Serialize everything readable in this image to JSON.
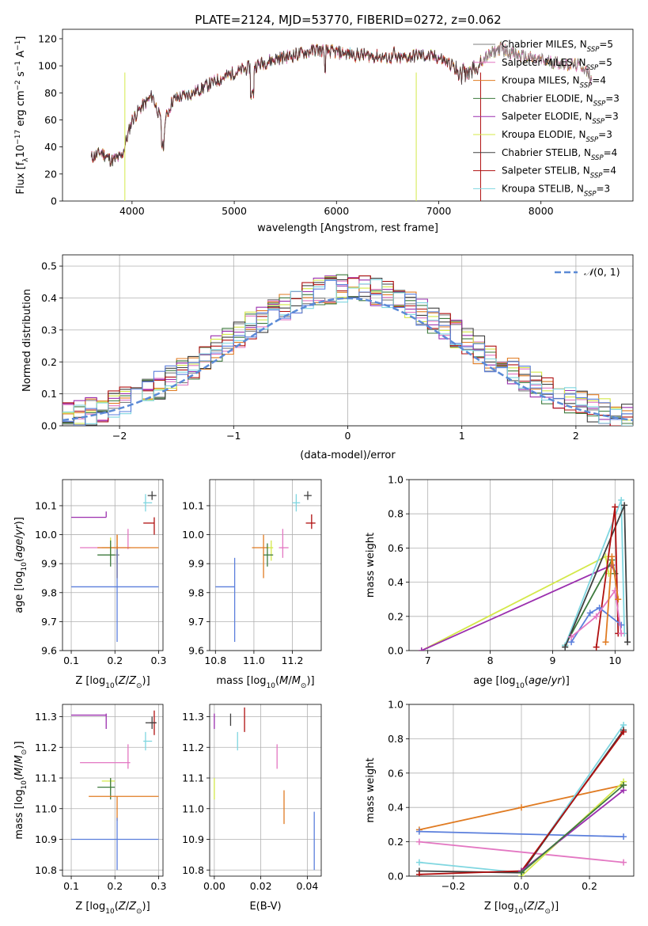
{
  "title": "PLATE=2124, MJD=53770, FIBERID=0272, z=0.062",
  "models": [
    {
      "key": "chabrier_miles",
      "label": "Chabrier MILES, N",
      "sub": "SSP",
      "suffix": "=5",
      "color": "#7f7f7f"
    },
    {
      "key": "salpeter_miles",
      "label": "Salpeter MILES, N",
      "sub": "SSP",
      "suffix": "=5",
      "color": "#e377c2"
    },
    {
      "key": "kroupa_miles",
      "label": "Kroupa MILES, N",
      "sub": "SSP",
      "suffix": "=4",
      "color": "#e07b22"
    },
    {
      "key": "chabrier_elodie",
      "label": "Chabrier ELODIE, N",
      "sub": "SSP",
      "suffix": "=3",
      "color": "#3d7a3d"
    },
    {
      "key": "salpeter_elodie",
      "label": "Salpeter ELODIE, N",
      "sub": "SSP",
      "suffix": "=3",
      "color": "#9b2fae"
    },
    {
      "key": "kroupa_elodie",
      "label": "Kroupa ELODIE, N",
      "sub": "SSP",
      "suffix": "=3",
      "color": "#d4e84a"
    },
    {
      "key": "chabrier_stelib",
      "label": "Chabrier STELIB, N",
      "sub": "SSP",
      "suffix": "=4",
      "color": "#404040"
    },
    {
      "key": "salpeter_stelib",
      "label": "Salpeter STELIB, N",
      "sub": "SSP",
      "suffix": "=4",
      "color": "#b01010"
    },
    {
      "key": "kroupa_stelib",
      "label": "Kroupa STELIB, N",
      "sub": "SSP",
      "suffix": "=3",
      "color": "#7fd6e0"
    }
  ],
  "chart_data": [
    {
      "id": "spectrum",
      "type": "line",
      "xlabel": "wavelength [Angstrom, rest frame]",
      "ylabel": "Flux [f_λ 10^-17 erg cm^-2 s^-1 A^-1]",
      "xlim": [
        3320,
        8900
      ],
      "ylim": [
        0,
        127
      ],
      "xticks": [
        4000,
        5000,
        6000,
        7000,
        8000
      ],
      "yticks": [
        0,
        20,
        40,
        60,
        80,
        100,
        120
      ],
      "legend": "top-right",
      "grid": false,
      "continuum_x": [
        3600,
        3700,
        3800,
        3900,
        4000,
        4100,
        4200,
        4300,
        4400,
        4600,
        4800,
        5000,
        5200,
        5400,
        5600,
        5800,
        6000,
        6200,
        6400,
        6600,
        6800,
        7000,
        7200,
        7400,
        7600,
        7800,
        8000,
        8200,
        8400,
        8500
      ],
      "continuum_y": [
        32,
        36,
        30,
        33,
        60,
        70,
        78,
        55,
        75,
        80,
        88,
        95,
        100,
        105,
        108,
        112,
        110,
        108,
        107,
        105,
        108,
        106,
        98,
        103,
        113,
        107,
        104,
        102,
        100,
        90
      ],
      "dropouts": [
        {
          "model": "kroupa_elodie",
          "x": 3930
        },
        {
          "model": "kroupa_elodie",
          "x": 6780
        },
        {
          "model": "salpeter_stelib",
          "x": 7410
        }
      ]
    },
    {
      "id": "residual_hist",
      "type": "step",
      "xlabel": "(data-model)/error",
      "ylabel": "Normed distribution",
      "xlim": [
        -2.5,
        2.5
      ],
      "ylim": [
        0,
        0.535
      ],
      "xticks": [
        -2,
        -1,
        0,
        1,
        2
      ],
      "yticks": [
        0,
        0.1,
        0.2,
        0.3,
        0.4,
        0.5
      ],
      "grid": true,
      "legend": "top-right",
      "reference": {
        "name": "N(0,1)",
        "mu": 0,
        "sigma": 1
      },
      "bins": {
        "start": -2.5,
        "width": 0.1,
        "count": 50
      }
    },
    {
      "id": "age_vs_Z",
      "type": "errorbar",
      "xlabel": "Z [log10(Z/Z☉)]",
      "ylabel": "age [log10(age/yr)]",
      "xlim": [
        0.08,
        0.31
      ],
      "ylim": [
        9.6,
        10.19
      ],
      "xticks": [
        0.1,
        0.2,
        0.3
      ],
      "yticks": [
        9.6,
        9.7,
        9.8,
        9.9,
        10.0,
        10.1
      ],
      "grid": true,
      "points": [
        {
          "model": "chabrier_stelib",
          "x": 0.285,
          "y": 10.135,
          "xlo": 0.275,
          "xhi": 0.295,
          "ylo": 10.12,
          "yhi": 10.15
        },
        {
          "model": "kroupa_stelib",
          "x": 0.27,
          "y": 10.11,
          "xlo": 0.265,
          "xhi": 0.285,
          "ylo": 10.08,
          "yhi": 10.14
        },
        {
          "model": "salpeter_elodie",
          "x": 0.18,
          "y": 10.06,
          "xlo": 0.1,
          "xhi": 0.18,
          "ylo": 10.06,
          "yhi": 10.08
        },
        {
          "model": "salpeter_stelib",
          "x": 0.29,
          "y": 10.04,
          "xlo": 0.265,
          "xhi": 0.29,
          "ylo": 10.0,
          "yhi": 10.06
        },
        {
          "model": "salpeter_miles",
          "x": 0.23,
          "y": 9.955,
          "xlo": 0.12,
          "xhi": 0.235,
          "ylo": 9.95,
          "yhi": 10.02
        },
        {
          "model": "kroupa_elodie",
          "x": 0.19,
          "y": 9.955,
          "xlo": 0.17,
          "xhi": 0.2,
          "ylo": 9.92,
          "yhi": 9.99
        },
        {
          "model": "kroupa_miles",
          "x": 0.205,
          "y": 9.955,
          "xlo": 0.16,
          "xhi": 0.3,
          "ylo": 9.85,
          "yhi": 10.0
        },
        {
          "model": "chabrier_elodie",
          "x": 0.19,
          "y": 9.93,
          "xlo": 0.16,
          "xhi": 0.2,
          "ylo": 9.89,
          "yhi": 9.98
        },
        {
          "model": "chabrier_miles",
          "x": 0.205,
          "y": 9.93,
          "xlo": 0.2,
          "xhi": 0.21,
          "ylo": 9.9,
          "yhi": 9.96
        },
        {
          "model": "kroupa_miles",
          "x": 0.205,
          "y": 9.955,
          "xlo": 0.2,
          "xhi": 0.2,
          "ylo": 9.85,
          "yhi": 10.0
        },
        {
          "model": "kroupa_miles_blue",
          "x": 0.205,
          "y": 9.82,
          "xlo": 0.1,
          "xhi": 0.3,
          "ylo": 9.63,
          "yhi": 9.95
        }
      ]
    },
    {
      "id": "age_vs_mass",
      "type": "errorbar",
      "xlabel": "mass [log10(M/M☉)]",
      "ylabel": "",
      "xlim": [
        10.77,
        11.35
      ],
      "ylim": [
        9.6,
        10.19
      ],
      "xticks": [
        10.8,
        11.0,
        11.2
      ],
      "yticks": [
        9.6,
        9.7,
        9.8,
        9.9,
        10.0,
        10.1
      ],
      "grid": true,
      "points": [
        {
          "model": "chabrier_stelib",
          "x": 11.28,
          "y": 10.135,
          "xlo": 11.26,
          "xhi": 11.3,
          "ylo": 10.12,
          "yhi": 10.15
        },
        {
          "model": "kroupa_stelib",
          "x": 11.22,
          "y": 10.11,
          "xlo": 11.2,
          "xhi": 11.24,
          "ylo": 10.08,
          "yhi": 10.14
        },
        {
          "model": "salpeter_stelib",
          "x": 11.3,
          "y": 10.04,
          "xlo": 11.27,
          "xhi": 11.32,
          "ylo": 10.02,
          "yhi": 10.07
        },
        {
          "model": "salpeter_miles",
          "x": 11.15,
          "y": 9.955,
          "xlo": 11.13,
          "xhi": 11.18,
          "ylo": 9.92,
          "yhi": 10.02
        },
        {
          "model": "kroupa_miles",
          "x": 11.05,
          "y": 9.955,
          "xlo": 10.99,
          "xhi": 11.08,
          "ylo": 9.85,
          "yhi": 10.0
        },
        {
          "model": "kroupa_elodie",
          "x": 11.09,
          "y": 9.955,
          "xlo": 11.07,
          "xhi": 11.1,
          "ylo": 9.91,
          "yhi": 9.98
        },
        {
          "model": "chabrier_elodie",
          "x": 11.07,
          "y": 9.93,
          "xlo": 11.05,
          "xhi": 11.1,
          "ylo": 9.89,
          "yhi": 9.97
        },
        {
          "model": "kroupa_miles_blue",
          "x": 10.9,
          "y": 9.82,
          "xlo": 10.8,
          "xhi": 10.9,
          "ylo": 9.63,
          "yhi": 9.92
        }
      ]
    },
    {
      "id": "weight_vs_age",
      "type": "line",
      "xlabel": "age [log10(age/yr)]",
      "ylabel": "mass weight",
      "xlim": [
        6.7,
        10.3
      ],
      "ylim": [
        0,
        1.0
      ],
      "xticks": [
        7,
        8,
        9,
        10
      ],
      "yticks": [
        0.0,
        0.2,
        0.4,
        0.6,
        0.8,
        1.0
      ],
      "grid": true,
      "series": [
        {
          "model": "kroupa_elodie",
          "x": [
            6.9,
            9.85,
            9.9
          ],
          "y": [
            0.0,
            0.55,
            0.45
          ]
        },
        {
          "model": "salpeter_elodie",
          "x": [
            6.9,
            9.95,
            10.0
          ],
          "y": [
            0.0,
            0.5,
            0.45
          ]
        },
        {
          "model": "chabrier_elodie",
          "x": [
            9.2,
            9.95,
            10.0
          ],
          "y": [
            0.03,
            0.53,
            0.45
          ]
        },
        {
          "model": "kroupa_stelib",
          "x": [
            9.2,
            10.1,
            10.15
          ],
          "y": [
            0.03,
            0.88,
            0.1
          ]
        },
        {
          "model": "chabrier_stelib",
          "x": [
            9.2,
            10.15,
            10.2
          ],
          "y": [
            0.02,
            0.85,
            0.05
          ]
        },
        {
          "model": "salpeter_stelib",
          "x": [
            9.7,
            10.0,
            10.05
          ],
          "y": [
            0.02,
            0.84,
            0.1
          ]
        },
        {
          "model": "kroupa_miles_blue",
          "x": [
            9.3,
            9.6,
            9.75,
            10.1
          ],
          "y": [
            0.05,
            0.22,
            0.25,
            0.15
          ]
        },
        {
          "model": "salpeter_miles",
          "x": [
            9.3,
            9.7,
            10.0,
            10.1
          ],
          "y": [
            0.08,
            0.2,
            0.35,
            0.1
          ]
        },
        {
          "model": "kroupa_miles",
          "x": [
            9.85,
            9.95,
            10.05
          ],
          "y": [
            0.05,
            0.55,
            0.3
          ]
        }
      ]
    },
    {
      "id": "mass_vs_Z",
      "type": "errorbar",
      "xlabel": "Z [log10(Z/Z☉)]",
      "ylabel": "mass [log10(M/M☉)]",
      "xlim": [
        0.08,
        0.31
      ],
      "ylim": [
        10.78,
        11.34
      ],
      "xticks": [
        0.1,
        0.2,
        0.3
      ],
      "yticks": [
        10.8,
        10.9,
        11.0,
        11.1,
        11.2,
        11.3
      ],
      "grid": true,
      "points": [
        {
          "model": "salpeter_elodie",
          "x": 0.18,
          "y": 11.305,
          "xlo": 0.1,
          "xhi": 0.18,
          "ylo": 11.26,
          "yhi": 11.31
        },
        {
          "model": "salpeter_stelib",
          "x": 0.29,
          "y": 11.28,
          "xlo": 0.28,
          "xhi": 0.295,
          "ylo": 11.24,
          "yhi": 11.32
        },
        {
          "model": "chabrier_stelib",
          "x": 0.285,
          "y": 11.28,
          "xlo": 0.27,
          "xhi": 0.295,
          "ylo": 11.26,
          "yhi": 11.3
        },
        {
          "model": "kroupa_stelib",
          "x": 0.27,
          "y": 11.22,
          "xlo": 0.265,
          "xhi": 0.285,
          "ylo": 11.19,
          "yhi": 11.25
        },
        {
          "model": "salpeter_miles",
          "x": 0.23,
          "y": 11.15,
          "xlo": 0.12,
          "xhi": 0.235,
          "ylo": 11.13,
          "yhi": 11.21
        },
        {
          "model": "kroupa_elodie",
          "x": 0.19,
          "y": 11.09,
          "xlo": 0.17,
          "xhi": 0.2,
          "ylo": 11.06,
          "yhi": 11.1
        },
        {
          "model": "chabrier_elodie",
          "x": 0.19,
          "y": 11.07,
          "xlo": 0.16,
          "xhi": 0.2,
          "ylo": 11.03,
          "yhi": 11.1
        },
        {
          "model": "kroupa_miles",
          "x": 0.205,
          "y": 11.04,
          "xlo": 0.14,
          "xhi": 0.3,
          "ylo": 10.96,
          "yhi": 11.04
        },
        {
          "model": "kroupa_miles_blue",
          "x": 0.205,
          "y": 10.9,
          "xlo": 0.1,
          "xhi": 0.3,
          "ylo": 10.8,
          "yhi": 10.97
        }
      ]
    },
    {
      "id": "mass_vs_ebv",
      "type": "errorbar",
      "xlabel": "E(B-V)",
      "ylabel": "",
      "xlim": [
        -0.002,
        0.046
      ],
      "ylim": [
        10.78,
        11.34
      ],
      "xticks": [
        0.0,
        0.02,
        0.04
      ],
      "yticks": [
        10.8,
        10.9,
        11.0,
        11.1,
        11.2,
        11.3
      ],
      "grid": true,
      "points": [
        {
          "model": "salpeter_elodie",
          "x": 0.0,
          "y": 11.3,
          "ylo": 11.26,
          "yhi": 11.31
        },
        {
          "model": "chabrier_stelib",
          "x": 0.007,
          "y": 11.3,
          "ylo": 11.27,
          "yhi": 11.31
        },
        {
          "model": "salpeter_stelib",
          "x": 0.013,
          "y": 11.3,
          "ylo": 11.25,
          "yhi": 11.33
        },
        {
          "model": "kroupa_stelib",
          "x": 0.01,
          "y": 11.22,
          "ylo": 11.19,
          "yhi": 11.25
        },
        {
          "model": "salpeter_miles",
          "x": 0.027,
          "y": 11.18,
          "ylo": 11.13,
          "yhi": 11.21
        },
        {
          "model": "kroupa_elodie",
          "x": 0.0,
          "y": 11.08,
          "ylo": 11.03,
          "yhi": 11.1
        },
        {
          "model": "kroupa_miles",
          "x": 0.03,
          "y": 11.01,
          "ylo": 10.95,
          "yhi": 11.06
        },
        {
          "model": "kroupa_miles_blue",
          "x": 0.043,
          "y": 10.9,
          "ylo": 10.8,
          "yhi": 10.99
        }
      ]
    },
    {
      "id": "weight_vs_Z",
      "type": "line",
      "xlabel": "Z [log10(Z/Z☉)]",
      "ylabel": "mass weight",
      "xlim": [
        -0.33,
        0.33
      ],
      "ylim": [
        0,
        1.0
      ],
      "xticks": [
        -0.2,
        0.0,
        0.2
      ],
      "yticks": [
        0.0,
        0.2,
        0.4,
        0.6,
        0.8,
        1.0
      ],
      "grid": true,
      "series": [
        {
          "model": "kroupa_miles",
          "x": [
            -0.3,
            0.0,
            0.3
          ],
          "y": [
            0.27,
            0.4,
            0.53
          ]
        },
        {
          "model": "kroupa_miles_blue",
          "x": [
            -0.3,
            0.3
          ],
          "y": [
            0.26,
            0.23
          ]
        },
        {
          "model": "salpeter_miles",
          "x": [
            -0.3,
            0.3
          ],
          "y": [
            0.2,
            0.08
          ]
        },
        {
          "model": "kroupa_stelib",
          "x": [
            -0.3,
            0.0,
            0.3
          ],
          "y": [
            0.08,
            0.02,
            0.88
          ]
        },
        {
          "model": "chabrier_stelib",
          "x": [
            -0.3,
            0.0,
            0.3
          ],
          "y": [
            0.03,
            0.02,
            0.85
          ]
        },
        {
          "model": "salpeter_stelib",
          "x": [
            -0.3,
            0.0,
            0.3
          ],
          "y": [
            0.01,
            0.03,
            0.84
          ]
        },
        {
          "model": "kroupa_elodie",
          "x": [
            0.0,
            0.3
          ],
          "y": [
            0.0,
            0.55
          ]
        },
        {
          "model": "salpeter_elodie",
          "x": [
            0.0,
            0.3
          ],
          "y": [
            0.03,
            0.5
          ]
        },
        {
          "model": "chabrier_elodie",
          "x": [
            0.0,
            0.3
          ],
          "y": [
            0.02,
            0.53
          ]
        }
      ]
    }
  ]
}
